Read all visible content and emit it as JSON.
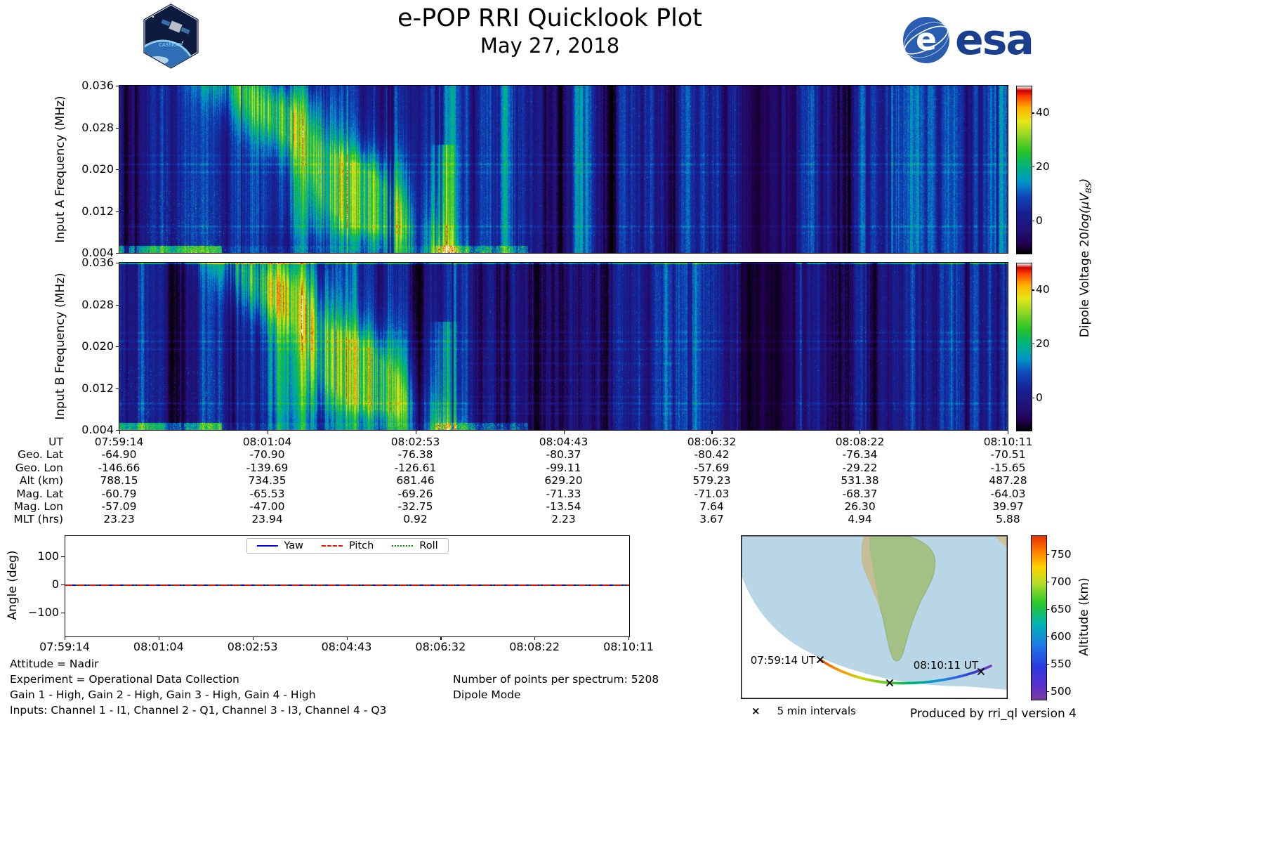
{
  "header": {
    "title": "e-POP RRI Quicklook Plot",
    "subtitle": "May 27, 2018",
    "cassiope_badge": "CASSIOPE",
    "esa_disc_letter": "e",
    "esa_wordmark": "esa"
  },
  "spectrograms": {
    "panel_a": {
      "ylabel": "Input A Frequency (MHz)"
    },
    "panel_b": {
      "ylabel": "Input B Frequency (MHz)"
    },
    "ytick_labels": [
      "0.036",
      "0.028",
      "0.020",
      "0.012",
      "0.004"
    ],
    "colorbar": {
      "label_main": "Dipole Voltage 20",
      "label_math": "log(μV",
      "label_sub": "BS",
      "label_close": ")",
      "tick_labels": [
        "40",
        "20",
        "0"
      ],
      "vmin": -12,
      "vmax": 50
    }
  },
  "ephemeris": {
    "rows": [
      {
        "label": "UT",
        "values": [
          "07:59:14",
          "08:01:04",
          "08:02:53",
          "08:04:43",
          "08:06:32",
          "08:08:22",
          "08:10:11"
        ]
      },
      {
        "label": "Geo. Lat",
        "values": [
          "-64.90",
          "-70.90",
          "-76.38",
          "-80.37",
          "-80.42",
          "-76.34",
          "-70.51"
        ]
      },
      {
        "label": "Geo. Lon",
        "values": [
          "-146.66",
          "-139.69",
          "-126.61",
          "-99.11",
          "-57.69",
          "-29.22",
          "-15.65"
        ]
      },
      {
        "label": "Alt (km)",
        "values": [
          "788.15",
          "734.35",
          "681.46",
          "629.20",
          "579.23",
          "531.38",
          "487.28"
        ]
      },
      {
        "label": "Mag. Lat",
        "values": [
          "-60.79",
          "-65.53",
          "-69.26",
          "-71.33",
          "-71.03",
          "-68.37",
          "-64.03"
        ]
      },
      {
        "label": "Mag. Lon",
        "values": [
          "-57.09",
          "-47.00",
          "-32.75",
          "-13.54",
          "7.64",
          "26.30",
          "39.97"
        ]
      },
      {
        "label": "MLT (hrs)",
        "values": [
          "23.23",
          "23.94",
          "0.92",
          "2.23",
          "3.67",
          "4.94",
          "5.88"
        ]
      }
    ]
  },
  "angle_plot": {
    "ylabel": "Angle (deg)",
    "ytick_labels": [
      "100",
      "0",
      "−100"
    ],
    "ytick_values": [
      100,
      0,
      -100
    ],
    "xtick_labels": [
      "07:59:14",
      "08:01:04",
      "08:02:53",
      "08:04:43",
      "08:06:32",
      "08:08:22",
      "08:10:11"
    ],
    "legend": [
      {
        "label": "Yaw",
        "color": "#0000ee",
        "style": "solid"
      },
      {
        "label": "Pitch",
        "color": "#ee1100",
        "style": "dashed"
      },
      {
        "label": "Roll",
        "color": "#008000",
        "style": "dotted"
      }
    ]
  },
  "annotations": {
    "attitude": "Attitude = Nadir",
    "experiment": "Experiment = Operational Data Collection",
    "gains": "Gain 1 - High, Gain 2 - High, Gain 3 - High, Gain 4 - High",
    "inputs": "Inputs: Channel 1 - I1, Channel 2 - Q1, Channel 3 - I3, Channel 4 - Q3",
    "points_per_spectrum": "Number of points per spectrum: 5208",
    "mode": "Dipole Mode",
    "produced_by": "Produced by rri_ql version 4"
  },
  "map": {
    "start_label": "07:59:14 UT",
    "end_label": "08:10:11 UT",
    "interval_marker": "×",
    "interval_legend": "5 min intervals",
    "colorbar_label": "Altitude (km)",
    "colorbar_ticks": [
      "750",
      "700",
      "650",
      "600",
      "550",
      "500"
    ],
    "alt_vmin": 486,
    "alt_vmax": 784
  },
  "chart_data": [
    {
      "type": "heatmap",
      "title": "Input A spectrogram",
      "xlabel": "UT",
      "ylabel": "Input A Frequency (MHz)",
      "x_ticks": [
        "07:59:14",
        "08:01:04",
        "08:02:53",
        "08:04:43",
        "08:06:32",
        "08:08:22",
        "08:10:11"
      ],
      "y_ticks_mhz": [
        0.036,
        0.028,
        0.02,
        0.012,
        0.004
      ],
      "ylim_mhz": [
        0.004,
        0.036
      ],
      "colorbar_label": "Dipole Voltage 20log(μV_BS)",
      "colorbar_ticks": [
        0,
        20,
        40
      ],
      "colorbar_range": [
        -12,
        50
      ],
      "features": "Strong green/yellow broadband ionospheric echoes 07:59-08:02 descending from 0.036 toward 0.004 MHz with vertical striations; brightest patch near 08:01-08:02; faint horizontal carrier lines near 0.020 and 0.009 MHz across full record; very dark dropout band near 08:07; low-level dark blue noise elsewhere; bright strip at lowest frequencies on the left edge"
    },
    {
      "type": "heatmap",
      "title": "Input B spectrogram",
      "xlabel": "UT",
      "ylabel": "Input B Frequency (MHz)",
      "x_ticks": [
        "07:59:14",
        "08:01:04",
        "08:02:53",
        "08:04:43",
        "08:06:32",
        "08:08:22",
        "08:10:11"
      ],
      "y_ticks_mhz": [
        0.036,
        0.028,
        0.02,
        0.012,
        0.004
      ],
      "ylim_mhz": [
        0.004,
        0.036
      ],
      "colorbar_label": "Dipole Voltage 20log(μV_BS)",
      "colorbar_ticks": [
        0,
        20,
        40
      ],
      "colorbar_range": [
        -12,
        50
      ],
      "features": "Same morphology as Input A: descending echo mass 07:59-08:02, faint cyan carrier lines near 0.020 and 0.009 MHz, faint box-like cyan segments 08:02-08:05 at low frequencies, dark dropout band near 08:07, bright cyan line along top edge"
    },
    {
      "type": "line",
      "title": "Spacecraft attitude angles vs UT",
      "ylabel": "Angle (deg)",
      "x": [
        "07:59:14",
        "08:01:04",
        "08:02:53",
        "08:04:43",
        "08:06:32",
        "08:08:22",
        "08:10:11"
      ],
      "series": [
        {
          "name": "Yaw",
          "values": [
            0,
            0,
            0,
            0,
            0,
            0,
            0
          ],
          "color": "#0000ee",
          "style": "solid"
        },
        {
          "name": "Pitch",
          "values": [
            0,
            0,
            0,
            0,
            0,
            0,
            0
          ],
          "color": "#ee1100",
          "style": "dashed"
        },
        {
          "name": "Roll",
          "values": [
            0,
            0,
            0,
            0,
            0,
            0,
            0
          ],
          "color": "#008000",
          "style": "dotted"
        }
      ],
      "ylim": [
        -182,
        175
      ],
      "yticks": [
        -100,
        0,
        100
      ],
      "legend_position": "top-center",
      "grid": false
    },
    {
      "type": "table",
      "title": "Ephemeris vs UT",
      "row_labels": [
        "UT",
        "Geo. Lat",
        "Geo. Lon",
        "Alt (km)",
        "Mag. Lat",
        "Mag. Lon",
        "MLT (hrs)"
      ],
      "columns": [
        [
          "07:59:14",
          "-64.90",
          "-146.66",
          "788.15",
          "-60.79",
          "-57.09",
          "23.23"
        ],
        [
          "08:01:04",
          "-70.90",
          "-139.69",
          "734.35",
          "-65.53",
          "-47.00",
          "23.94"
        ],
        [
          "08:02:53",
          "-76.38",
          "-126.61",
          "681.46",
          "-69.26",
          "-32.75",
          "0.92"
        ],
        [
          "08:04:43",
          "-80.37",
          "-99.11",
          "629.20",
          "-71.33",
          "-13.54",
          "2.23"
        ],
        [
          "08:06:32",
          "-80.42",
          "-57.69",
          "579.23",
          "-71.03",
          "7.64",
          "3.67"
        ],
        [
          "08:08:22",
          "-76.34",
          "-29.22",
          "531.38",
          "-68.37",
          "26.30",
          "4.94"
        ],
        [
          "08:10:11",
          "-70.51",
          "-15.65",
          "487.28",
          "-64.03",
          "39.97",
          "5.88"
        ]
      ]
    },
    {
      "type": "map",
      "title": "Ground track south of South America, colored by altitude",
      "track_start": {
        "label": "07:59:14 UT",
        "alt_km": 788.15
      },
      "track_end": {
        "label": "08:10:11 UT",
        "alt_km": 487.28
      },
      "marker_legend": "5 min intervals",
      "colorbar_label": "Altitude (km)",
      "colorbar_ticks": [
        500,
        550,
        600,
        650,
        700,
        750
      ]
    }
  ]
}
